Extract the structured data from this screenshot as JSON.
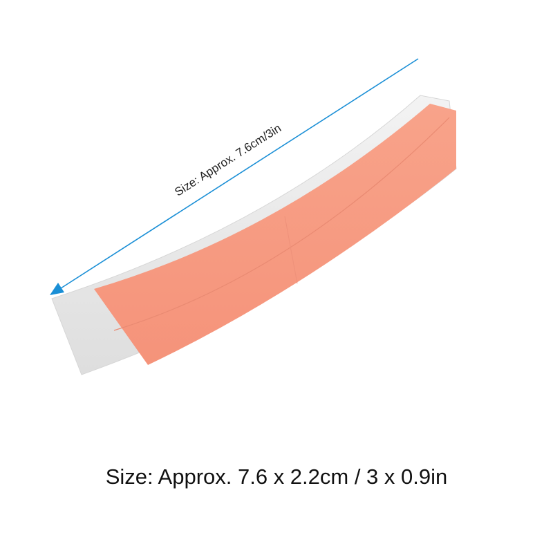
{
  "dimension_label": "Size: Approx. 7.6cm/3in",
  "caption": "Size: Approx. 7.6 x 2.2cm / 3 x 0.9in",
  "colors": {
    "arrow": "#1a8fd6",
    "tape": "#f79a82",
    "liner": "#ececec"
  },
  "icons": {
    "arrow": "arrow-icon"
  }
}
